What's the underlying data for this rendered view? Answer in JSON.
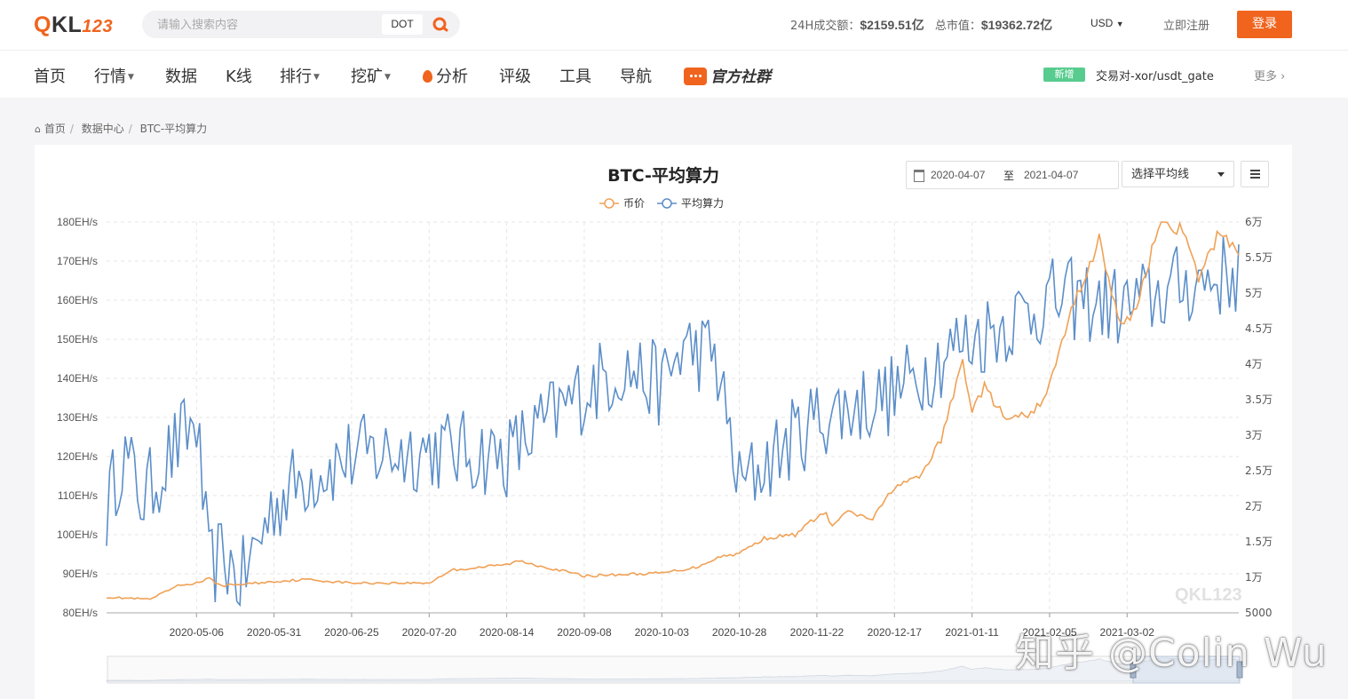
{
  "header": {
    "logo_q": "Q",
    "logo_kl": "KL",
    "logo_num": "123",
    "search_placeholder": "请输入搜索内容",
    "search_tag": "DOT",
    "volume_label": "24H成交额：",
    "volume_value": "$2159.51亿",
    "mcap_label": "总市值：",
    "mcap_value": "$19362.72亿",
    "currency": "USD",
    "register": "立即注册",
    "login": "登录"
  },
  "nav": {
    "items": [
      "首页",
      "行情",
      "数据",
      "K线",
      "排行",
      "挖矿",
      "分析",
      "评级",
      "工具",
      "导航"
    ],
    "community": "官方社群",
    "badge": "新增",
    "news": "交易对-xor/usdt_gate",
    "more": "更多"
  },
  "breadcrumb": [
    "首页",
    "数据中心",
    "BTC-平均算力"
  ],
  "controls": {
    "date_from": "2020-04-07",
    "date_sep": "至",
    "date_to": "2021-04-07",
    "ma_select": "选择平均线"
  },
  "watermark": "知乎 @Colin Wu",
  "colors": {
    "accent": "#f0641e",
    "price": "#f0a156",
    "hashrate": "#5b8ec9"
  },
  "chart_data": {
    "type": "line",
    "title": "BTC-平均算力",
    "legend": [
      "币价",
      "平均算力"
    ],
    "x_ticks": [
      "2020-05-06",
      "2020-05-31",
      "2020-06-25",
      "2020-07-20",
      "2020-08-14",
      "2020-09-08",
      "2020-10-03",
      "2020-10-28",
      "2020-11-22",
      "2020-12-17",
      "2021-01-11",
      "2021-02-05",
      "2021-03-02"
    ],
    "x_range": [
      "2020-04-07",
      "2021-04-07"
    ],
    "y_left_label_ticks": [
      "80EH/s",
      "90EH/s",
      "100EH/s",
      "110EH/s",
      "120EH/s",
      "130EH/s",
      "140EH/s",
      "150EH/s",
      "160EH/s",
      "170EH/s",
      "180EH/s"
    ],
    "y_right_label_ticks": [
      "5000",
      "1万",
      "1.5万",
      "2万",
      "2.5万",
      "3万",
      "3.5万",
      "4万",
      "4.5万",
      "5万",
      "5.5万",
      "6万"
    ],
    "y_left_range": [
      80,
      180
    ],
    "y_right_range": [
      5000,
      60000
    ],
    "series": [
      {
        "name": "币价",
        "axis": "right",
        "points": [
          [
            "2020-04-07",
            7200
          ],
          [
            "2020-04-21",
            6900
          ],
          [
            "2020-04-30",
            8800
          ],
          [
            "2020-05-06",
            9200
          ],
          [
            "2020-05-10",
            9800
          ],
          [
            "2020-05-14",
            8800
          ],
          [
            "2020-05-31",
            9400
          ],
          [
            "2020-06-10",
            9700
          ],
          [
            "2020-06-25",
            9200
          ],
          [
            "2020-07-20",
            9200
          ],
          [
            "2020-07-27",
            11000
          ],
          [
            "2020-08-14",
            11800
          ],
          [
            "2020-08-18",
            12300
          ],
          [
            "2020-09-08",
            10200
          ],
          [
            "2020-10-03",
            10600
          ],
          [
            "2020-10-14",
            11400
          ],
          [
            "2020-10-21",
            12800
          ],
          [
            "2020-10-28",
            13400
          ],
          [
            "2020-11-05",
            15500
          ],
          [
            "2020-11-15",
            16000
          ],
          [
            "2020-11-22",
            18500
          ],
          [
            "2020-11-25",
            19000
          ],
          [
            "2020-11-27",
            17000
          ],
          [
            "2020-12-01",
            19200
          ],
          [
            "2020-12-10",
            18200
          ],
          [
            "2020-12-17",
            22800
          ],
          [
            "2020-12-25",
            24000
          ],
          [
            "2021-01-01",
            29300
          ],
          [
            "2021-01-08",
            40500
          ],
          [
            "2021-01-11",
            33500
          ],
          [
            "2021-01-15",
            36800
          ],
          [
            "2021-01-22",
            32100
          ],
          [
            "2021-01-31",
            33100
          ],
          [
            "2021-02-05",
            37000
          ],
          [
            "2021-02-12",
            47500
          ],
          [
            "2021-02-21",
            57500
          ],
          [
            "2021-02-28",
            45000
          ],
          [
            "2021-03-05",
            48000
          ],
          [
            "2021-03-13",
            61000
          ],
          [
            "2021-03-20",
            58500
          ],
          [
            "2021-03-25",
            52000
          ],
          [
            "2021-04-01",
            58800
          ],
          [
            "2021-04-07",
            56000
          ]
        ]
      },
      {
        "name": "平均算力",
        "axis": "left",
        "points": [
          [
            "2020-04-07",
            106
          ],
          [
            "2020-04-12",
            121
          ],
          [
            "2020-04-19",
            109
          ],
          [
            "2020-04-27",
            120
          ],
          [
            "2020-05-06",
            129
          ],
          [
            "2020-05-10",
            91
          ],
          [
            "2020-05-15",
            95
          ],
          [
            "2020-05-20",
            87
          ],
          [
            "2020-05-31",
            108
          ],
          [
            "2020-06-10",
            115
          ],
          [
            "2020-06-25",
            120
          ],
          [
            "2020-07-20",
            122
          ],
          [
            "2020-08-14",
            120
          ],
          [
            "2020-09-08",
            137
          ],
          [
            "2020-09-20",
            143
          ],
          [
            "2020-10-03",
            138
          ],
          [
            "2020-10-10",
            148
          ],
          [
            "2020-10-20",
            146
          ],
          [
            "2020-10-28",
            112
          ],
          [
            "2020-11-05",
            118
          ],
          [
            "2020-11-22",
            130
          ],
          [
            "2020-12-17",
            136
          ],
          [
            "2021-01-05",
            148
          ],
          [
            "2021-01-11",
            150
          ],
          [
            "2021-02-05",
            160
          ],
          [
            "2021-02-15",
            160
          ],
          [
            "2021-03-02",
            158
          ],
          [
            "2021-03-20",
            164
          ],
          [
            "2021-04-07",
            167
          ]
        ]
      }
    ]
  }
}
